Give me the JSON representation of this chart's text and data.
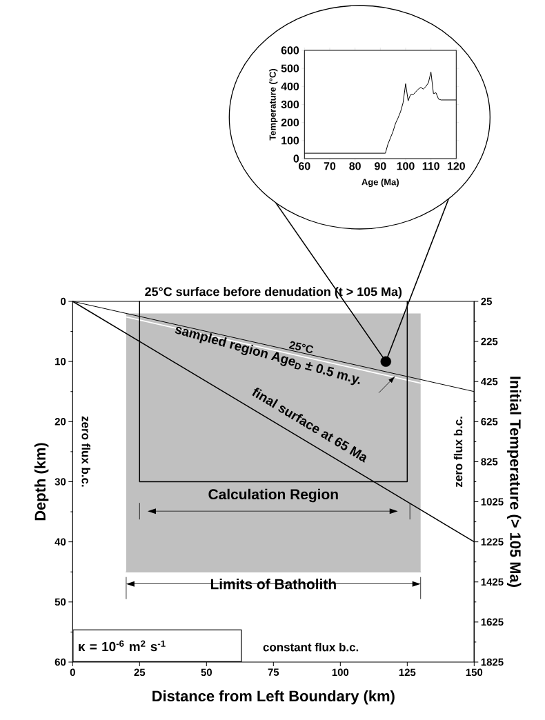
{
  "chart_data": [
    {
      "type": "line",
      "xlabel": "Age (Ma)",
      "ylabel": "Temperature (°C)",
      "color": "#000000",
      "x": [
        60,
        92,
        93,
        94,
        95,
        96,
        97,
        98,
        99,
        100,
        101,
        101.5,
        102,
        103,
        104,
        105,
        106,
        107,
        108,
        109,
        110,
        111,
        112,
        113,
        114,
        120
      ],
      "values": [
        30,
        30,
        80,
        115,
        150,
        195,
        225,
        260,
        310,
        415,
        320,
        340,
        355,
        355,
        370,
        385,
        395,
        385,
        400,
        420,
        480,
        360,
        365,
        330,
        325,
        325
      ],
      "xlim": [
        60,
        120
      ],
      "ylim": [
        0,
        600
      ],
      "xticks": [
        60,
        70,
        80,
        90,
        100,
        110,
        120
      ],
      "yticks": [
        0,
        100,
        200,
        300,
        400,
        500,
        600
      ]
    },
    {
      "type": "line",
      "xlabel": "Distance from Left Boundary (km)",
      "ylabel": "Depth (km)",
      "y2label": "Initial Temperature (> 105 Ma)",
      "xlim": [
        0,
        150
      ],
      "ylim": [
        60,
        0
      ],
      "y2lim": [
        1825,
        25
      ],
      "xticks": [
        0,
        25,
        50,
        75,
        100,
        125,
        150
      ],
      "yticks": [
        0,
        10,
        20,
        30,
        40,
        50,
        60
      ],
      "y2ticks": [
        25,
        225,
        425,
        625,
        825,
        1025,
        1225,
        1425,
        1625,
        1825
      ],
      "series": [
        {
          "type": "line",
          "color": "#c0c0c0",
          "x": [
            20,
            130
          ],
          "values": [
            45,
            45
          ],
          "lower": [
            2,
            2
          ],
          "upper": [
            45,
            45
          ]
        },
        {
          "type": "line",
          "color": "#000000",
          "x": [
            0,
            150
          ],
          "values": [
            0,
            15
          ]
        },
        {
          "type": "line",
          "color": "#ffffff",
          "x": [
            20,
            130
          ],
          "values": [
            2.6,
            13.6
          ]
        },
        {
          "type": "line",
          "color": "#000000",
          "x": [
            0,
            150
          ],
          "values": [
            0,
            40
          ]
        },
        {
          "type": "line",
          "color": "#000000",
          "x": [
            25,
            25,
            125,
            125
          ],
          "values": [
            0,
            30,
            30,
            0
          ]
        },
        {
          "type": "scatter",
          "color": "#000000",
          "x": [
            117
          ],
          "values": [
            10
          ]
        }
      ],
      "annotations": [
        "25°C surface before denudation (t > 105 Ma)",
        {
          "text": "25°C",
          "x": 85,
          "y": 8.5
        },
        "sampled region Age$_{D}$ ± 0.5 m.y.",
        "final surface at 65 Ma",
        "zero flux b.c.",
        "zero flux b.c.",
        "Calculation Region",
        "Limits of Batholith",
        "constant flux b.c.",
        "κ = 10$^{-6}$ m$^{2}$ s$^{-1}$"
      ]
    }
  ]
}
